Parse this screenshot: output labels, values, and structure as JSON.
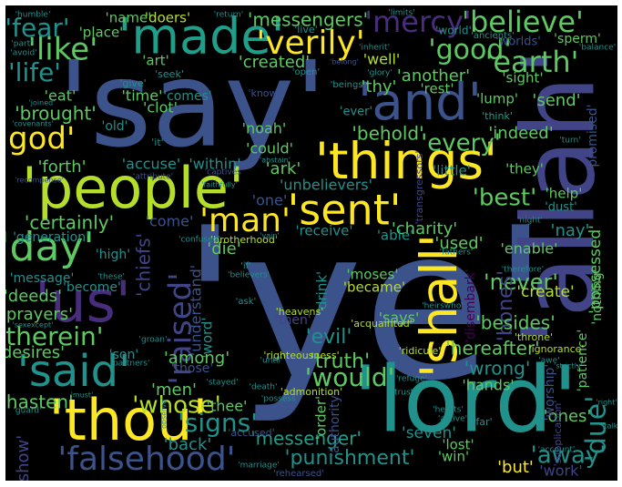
{
  "background": "#000000",
  "colors": {
    "yellow": "#fde725",
    "lime": "#b5de2b",
    "green": "#5ec962",
    "teal": "#21918c",
    "seagreen": "#1f9e89",
    "slate": "#3b528b",
    "indigo": "#414487",
    "purple": "#472d7b",
    "deep": "#440154",
    "bluegrey": "#31688e"
  },
  "words": [
    {
      "text": "'ye'",
      "color": "slate"
    },
    {
      "text": "'say'",
      "color": "slate"
    },
    {
      "text": "'allah'",
      "color": "indigo"
    },
    {
      "text": "'lord'",
      "color": "teal"
    },
    {
      "text": "'people'",
      "color": "lime"
    },
    {
      "text": "'things'",
      "color": "yellow"
    },
    {
      "text": "'thou'",
      "color": "yellow"
    },
    {
      "text": "'made'",
      "color": "seagreen"
    },
    {
      "text": "'shall'",
      "color": "yellow"
    },
    {
      "text": "'and'",
      "color": "slate"
    },
    {
      "text": "'us'",
      "color": "purple"
    },
    {
      "text": "'said'",
      "color": "teal"
    },
    {
      "text": "'sent'",
      "color": "yellow"
    },
    {
      "text": "'day'",
      "color": "green"
    },
    {
      "text": "'falsehood'",
      "color": "slate"
    },
    {
      "text": "'verily'",
      "color": "yellow"
    },
    {
      "text": "'believe'",
      "color": "green"
    },
    {
      "text": "'god'",
      "color": "yellow"
    },
    {
      "text": "'man'",
      "color": "yellow"
    },
    {
      "text": "'earth'",
      "color": "green"
    },
    {
      "text": "'mercy'",
      "color": "purple"
    },
    {
      "text": "'good'",
      "color": "green"
    },
    {
      "text": "'like'",
      "color": "green"
    },
    {
      "text": "'fear'",
      "color": "teal"
    },
    {
      "text": "'life'",
      "color": "teal"
    },
    {
      "text": "'therein'",
      "color": "green"
    },
    {
      "text": "'would'",
      "color": "green"
    },
    {
      "text": "'signs'",
      "color": "teal"
    },
    {
      "text": "'whose'",
      "color": "lime"
    },
    {
      "text": "'due'",
      "color": "teal"
    },
    {
      "text": "'raised'",
      "color": "indigo"
    },
    {
      "text": "'every'",
      "color": "green"
    },
    {
      "text": "'best'",
      "color": "green"
    },
    {
      "text": "'away'",
      "color": "teal"
    },
    {
      "text": "'truth'",
      "color": "green"
    },
    {
      "text": "'never'",
      "color": "green"
    },
    {
      "text": "'messengers'",
      "color": "green"
    },
    {
      "text": "'punishment'",
      "color": "teal"
    },
    {
      "text": "'messenger'",
      "color": "seagreen"
    },
    {
      "text": "'bones'",
      "color": "indigo"
    },
    {
      "text": "'brought'",
      "color": "green"
    },
    {
      "text": "'certainly'",
      "color": "green"
    },
    {
      "text": "'evil'",
      "color": "teal"
    },
    {
      "text": "'hasten'",
      "color": "green"
    },
    {
      "text": "'besides'",
      "color": "green"
    },
    {
      "text": "'wrong'",
      "color": "teal"
    },
    {
      "text": "'behold'",
      "color": "green"
    },
    {
      "text": "'hereafter'",
      "color": "green"
    },
    {
      "text": "'possessed'",
      "color": "green"
    },
    {
      "text": "'ones'",
      "color": "green"
    },
    {
      "text": "'created'",
      "color": "green"
    },
    {
      "text": "'another'",
      "color": "green"
    },
    {
      "text": "'deeds'",
      "color": "green"
    },
    {
      "text": "'prayers'",
      "color": "green"
    },
    {
      "text": "'desires'",
      "color": "green"
    },
    {
      "text": "'charity'",
      "color": "green"
    },
    {
      "text": "'used'",
      "color": "green"
    },
    {
      "text": "'create'",
      "color": "lime"
    },
    {
      "text": "'name'",
      "color": "green"
    },
    {
      "text": "'doers'",
      "color": "lime"
    },
    {
      "text": "'place'",
      "color": "green"
    },
    {
      "text": "'art'",
      "color": "green"
    },
    {
      "text": "'well'",
      "color": "lime"
    },
    {
      "text": "'thy'",
      "color": "green"
    },
    {
      "text": "'rest'",
      "color": "green"
    },
    {
      "text": "'sight'",
      "color": "green"
    },
    {
      "text": "'lump'",
      "color": "green"
    },
    {
      "text": "'send'",
      "color": "green"
    },
    {
      "text": "'indeed'",
      "color": "green"
    },
    {
      "text": "'eat'",
      "color": "green"
    },
    {
      "text": "'time'",
      "color": "green"
    },
    {
      "text": "'comes'",
      "color": "teal"
    },
    {
      "text": "'clot'",
      "color": "green"
    },
    {
      "text": "'noah'",
      "color": "green"
    },
    {
      "text": "'could'",
      "color": "green"
    },
    {
      "text": "'forth'",
      "color": "green"
    },
    {
      "text": "'accuse'",
      "color": "teal"
    },
    {
      "text": "'within'",
      "color": "teal"
    },
    {
      "text": "'ark'",
      "color": "green"
    },
    {
      "text": "'one'",
      "color": "slate"
    },
    {
      "text": "'unbelievers'",
      "color": "teal"
    },
    {
      "text": "'come'",
      "color": "slate"
    },
    {
      "text": "'die'",
      "color": "green"
    },
    {
      "text": "'chiefs'",
      "color": "indigo"
    },
    {
      "text": "'understand'",
      "color": "slate"
    },
    {
      "text": "'word'",
      "color": "teal"
    },
    {
      "text": "'drink'",
      "color": "teal"
    },
    {
      "text": "'moses'",
      "color": "green"
    },
    {
      "text": "'became'",
      "color": "lime"
    },
    {
      "text": "'says'",
      "color": "green"
    },
    {
      "text": "'among'",
      "color": "green"
    },
    {
      "text": "'men'",
      "color": "green"
    },
    {
      "text": "'thee'",
      "color": "green"
    },
    {
      "text": "'back'",
      "color": "teal"
    },
    {
      "text": "'show'",
      "color": "indigo"
    },
    {
      "text": "'order'",
      "color": "green"
    },
    {
      "text": "'authority'",
      "color": "slate"
    },
    {
      "text": "'seven'",
      "color": "teal"
    },
    {
      "text": "'lost'",
      "color": "green"
    },
    {
      "text": "'win'",
      "color": "green"
    },
    {
      "text": "'but'",
      "color": "yellow"
    },
    {
      "text": "'work'",
      "color": "indigo"
    },
    {
      "text": "'hands'",
      "color": "green"
    },
    {
      "text": "'worship'",
      "color": "slate"
    },
    {
      "text": "'patience'",
      "color": "green"
    },
    {
      "text": "'nothing'",
      "color": "green"
    },
    {
      "text": "'receive'",
      "color": "teal"
    },
    {
      "text": "'able'",
      "color": "teal"
    },
    {
      "text": "'enable'",
      "color": "green"
    },
    {
      "text": "'nay'",
      "color": "teal"
    },
    {
      "text": "'help'",
      "color": "green"
    },
    {
      "text": "'dust'",
      "color": "teal"
    },
    {
      "text": "'little'",
      "color": "teal"
    },
    {
      "text": "'they'",
      "color": "green"
    },
    {
      "text": "'promised'",
      "color": "slate"
    },
    {
      "text": "'old'",
      "color": "teal"
    },
    {
      "text": "'generation'",
      "color": "teal"
    },
    {
      "text": "'high'",
      "color": "teal"
    },
    {
      "text": "'message'",
      "color": "teal"
    },
    {
      "text": "'become'",
      "color": "teal"
    },
    {
      "text": "'son'",
      "color": "teal"
    },
    {
      "text": "'those'",
      "color": "slate"
    },
    {
      "text": "'then'",
      "color": "indigo"
    },
    {
      "text": "'worlds'",
      "color": "slate"
    },
    {
      "text": "'sperm'",
      "color": "green"
    },
    {
      "text": "'seek'",
      "color": "teal"
    },
    {
      "text": "'give'",
      "color": "teal"
    },
    {
      "text": "'know'",
      "color": "slate"
    },
    {
      "text": "'it'",
      "color": "teal"
    },
    {
      "text": "'heavens'",
      "color": "lime"
    },
    {
      "text": "'acquainted'",
      "color": "lime"
    },
    {
      "text": "'righteousness'",
      "color": "lime"
    },
    {
      "text": "'admonition'",
      "color": "lime"
    },
    {
      "text": "'ridicule'",
      "color": "lime"
    },
    {
      "text": "'throne'",
      "color": "lime"
    },
    {
      "text": "'brotherhood'",
      "color": "lime"
    },
    {
      "text": "'ignorance'",
      "color": "lime"
    },
    {
      "text": "'disembark'",
      "color": "deep"
    },
    {
      "text": "'transgressors'",
      "color": "indigo"
    },
    {
      "text": "'supplication'",
      "color": "indigo"
    },
    {
      "text": "'ever'",
      "color": "teal"
    },
    {
      "text": "'think'",
      "color": "seagreen"
    },
    {
      "text": "'world'",
      "color": "teal"
    },
    {
      "text": "'humble'",
      "color": "teal"
    },
    {
      "text": "'return'",
      "color": "teal"
    },
    {
      "text": "'limits'",
      "color": "teal"
    },
    {
      "text": "'ancients'",
      "color": "teal"
    },
    {
      "text": "'inherit'",
      "color": "teal"
    },
    {
      "text": "'glory'",
      "color": "teal"
    },
    {
      "text": "'beings'",
      "color": "teal"
    },
    {
      "text": "'open'",
      "color": "teal"
    },
    {
      "text": "'balance'",
      "color": "teal"
    },
    {
      "text": "'part'",
      "color": "teal"
    },
    {
      "text": "'avoid'",
      "color": "teal"
    },
    {
      "text": "'joined'",
      "color": "teal"
    },
    {
      "text": "'covenants'",
      "color": "teal"
    },
    {
      "text": "'recompense'",
      "color": "slate"
    },
    {
      "text": "'attribute'",
      "color": "slate"
    },
    {
      "text": "'captives'",
      "color": "slate"
    },
    {
      "text": "'abstain'",
      "color": "teal"
    },
    {
      "text": "'faithfully'",
      "color": "teal"
    },
    {
      "text": "'confused'",
      "color": "teal"
    },
    {
      "text": "'vain'",
      "color": "teal"
    },
    {
      "text": "'if'",
      "color": "teal"
    },
    {
      "text": "'believers'",
      "color": "teal"
    },
    {
      "text": "'these'",
      "color": "teal"
    },
    {
      "text": "'ask'",
      "color": "teal"
    },
    {
      "text": "'heirswho'",
      "color": "teal"
    },
    {
      "text": "'therefore'",
      "color": "teal"
    },
    {
      "text": "'fathers'",
      "color": "teal"
    },
    {
      "text": "'night'",
      "color": "teal"
    },
    {
      "text": "'turn'",
      "color": "teal"
    },
    {
      "text": "'sexexcept'",
      "color": "teal"
    },
    {
      "text": "'groan'",
      "color": "teal"
    },
    {
      "text": "'partners'",
      "color": "teal"
    },
    {
      "text": "'until'",
      "color": "teal"
    },
    {
      "text": "'refuge'",
      "color": "teal"
    },
    {
      "text": "'awe'",
      "color": "teal"
    },
    {
      "text": "'strictly'",
      "color": "teal"
    },
    {
      "text": "'stayed'",
      "color": "teal"
    },
    {
      "text": "'death'",
      "color": "teal"
    },
    {
      "text": "'must'",
      "color": "teal"
    },
    {
      "text": "'guard'",
      "color": "teal"
    },
    {
      "text": "'observe'",
      "color": "teal"
    },
    {
      "text": "'possess'",
      "color": "teal"
    },
    {
      "text": "'trusts'",
      "color": "teal"
    },
    {
      "text": "'hearts'",
      "color": "teal"
    },
    {
      "text": "'active'",
      "color": "teal"
    },
    {
      "text": "'far'",
      "color": "teal"
    },
    {
      "text": "'right'",
      "color": "teal"
    },
    {
      "text": "'talk'",
      "color": "teal"
    },
    {
      "text": "'account'",
      "color": "teal"
    },
    {
      "text": "'marriage'",
      "color": "teal"
    },
    {
      "text": "'accused'",
      "color": "slate"
    },
    {
      "text": "'rehearsed'",
      "color": "slate"
    },
    {
      "text": "'live'",
      "color": "teal"
    },
    {
      "text": "'belong'",
      "color": "slate"
    }
  ]
}
